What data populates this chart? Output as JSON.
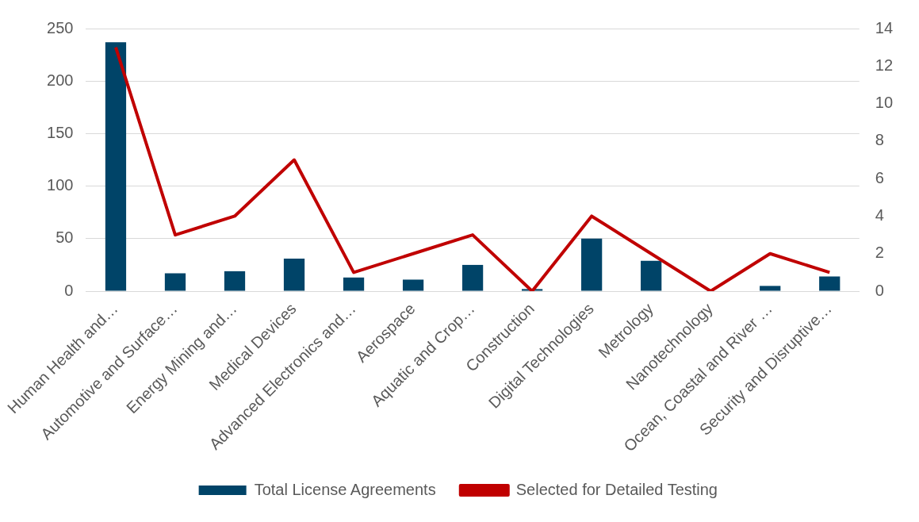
{
  "chart_data": {
    "type": "bar",
    "categories": [
      "Human Health and…",
      "Automotive and Surface…",
      "Energy Mining and…",
      "Medical Devices",
      "Advanced Electronics and…",
      "Aerospace",
      "Aquatic and Crop…",
      "Construction",
      "Digital Technologies",
      "Metrology",
      "Nanotechnology",
      "Ocean, Coastal and River …",
      "Security and Disruptive…"
    ],
    "series": [
      {
        "name": "Total License Agreements",
        "color": "#004468",
        "values": [
          237,
          17,
          19,
          31,
          13,
          11,
          25,
          2,
          50,
          29,
          0,
          5,
          14
        ]
      },
      {
        "name": "Selected for Detailed Testing",
        "type": "line",
        "axis": "y2",
        "color": "#c00000",
        "values": [
          13,
          3,
          4,
          7,
          1,
          2,
          3,
          0,
          4,
          2,
          0,
          2,
          1
        ]
      }
    ],
    "ylim": [
      0,
      250
    ],
    "yticks": [
      0,
      50,
      100,
      150,
      200,
      250
    ],
    "y2lim": [
      0,
      14
    ],
    "y2ticks": [
      0,
      2,
      4,
      6,
      8,
      10,
      12,
      14
    ],
    "grid": "y",
    "legend": "bottom",
    "marker": "none"
  }
}
